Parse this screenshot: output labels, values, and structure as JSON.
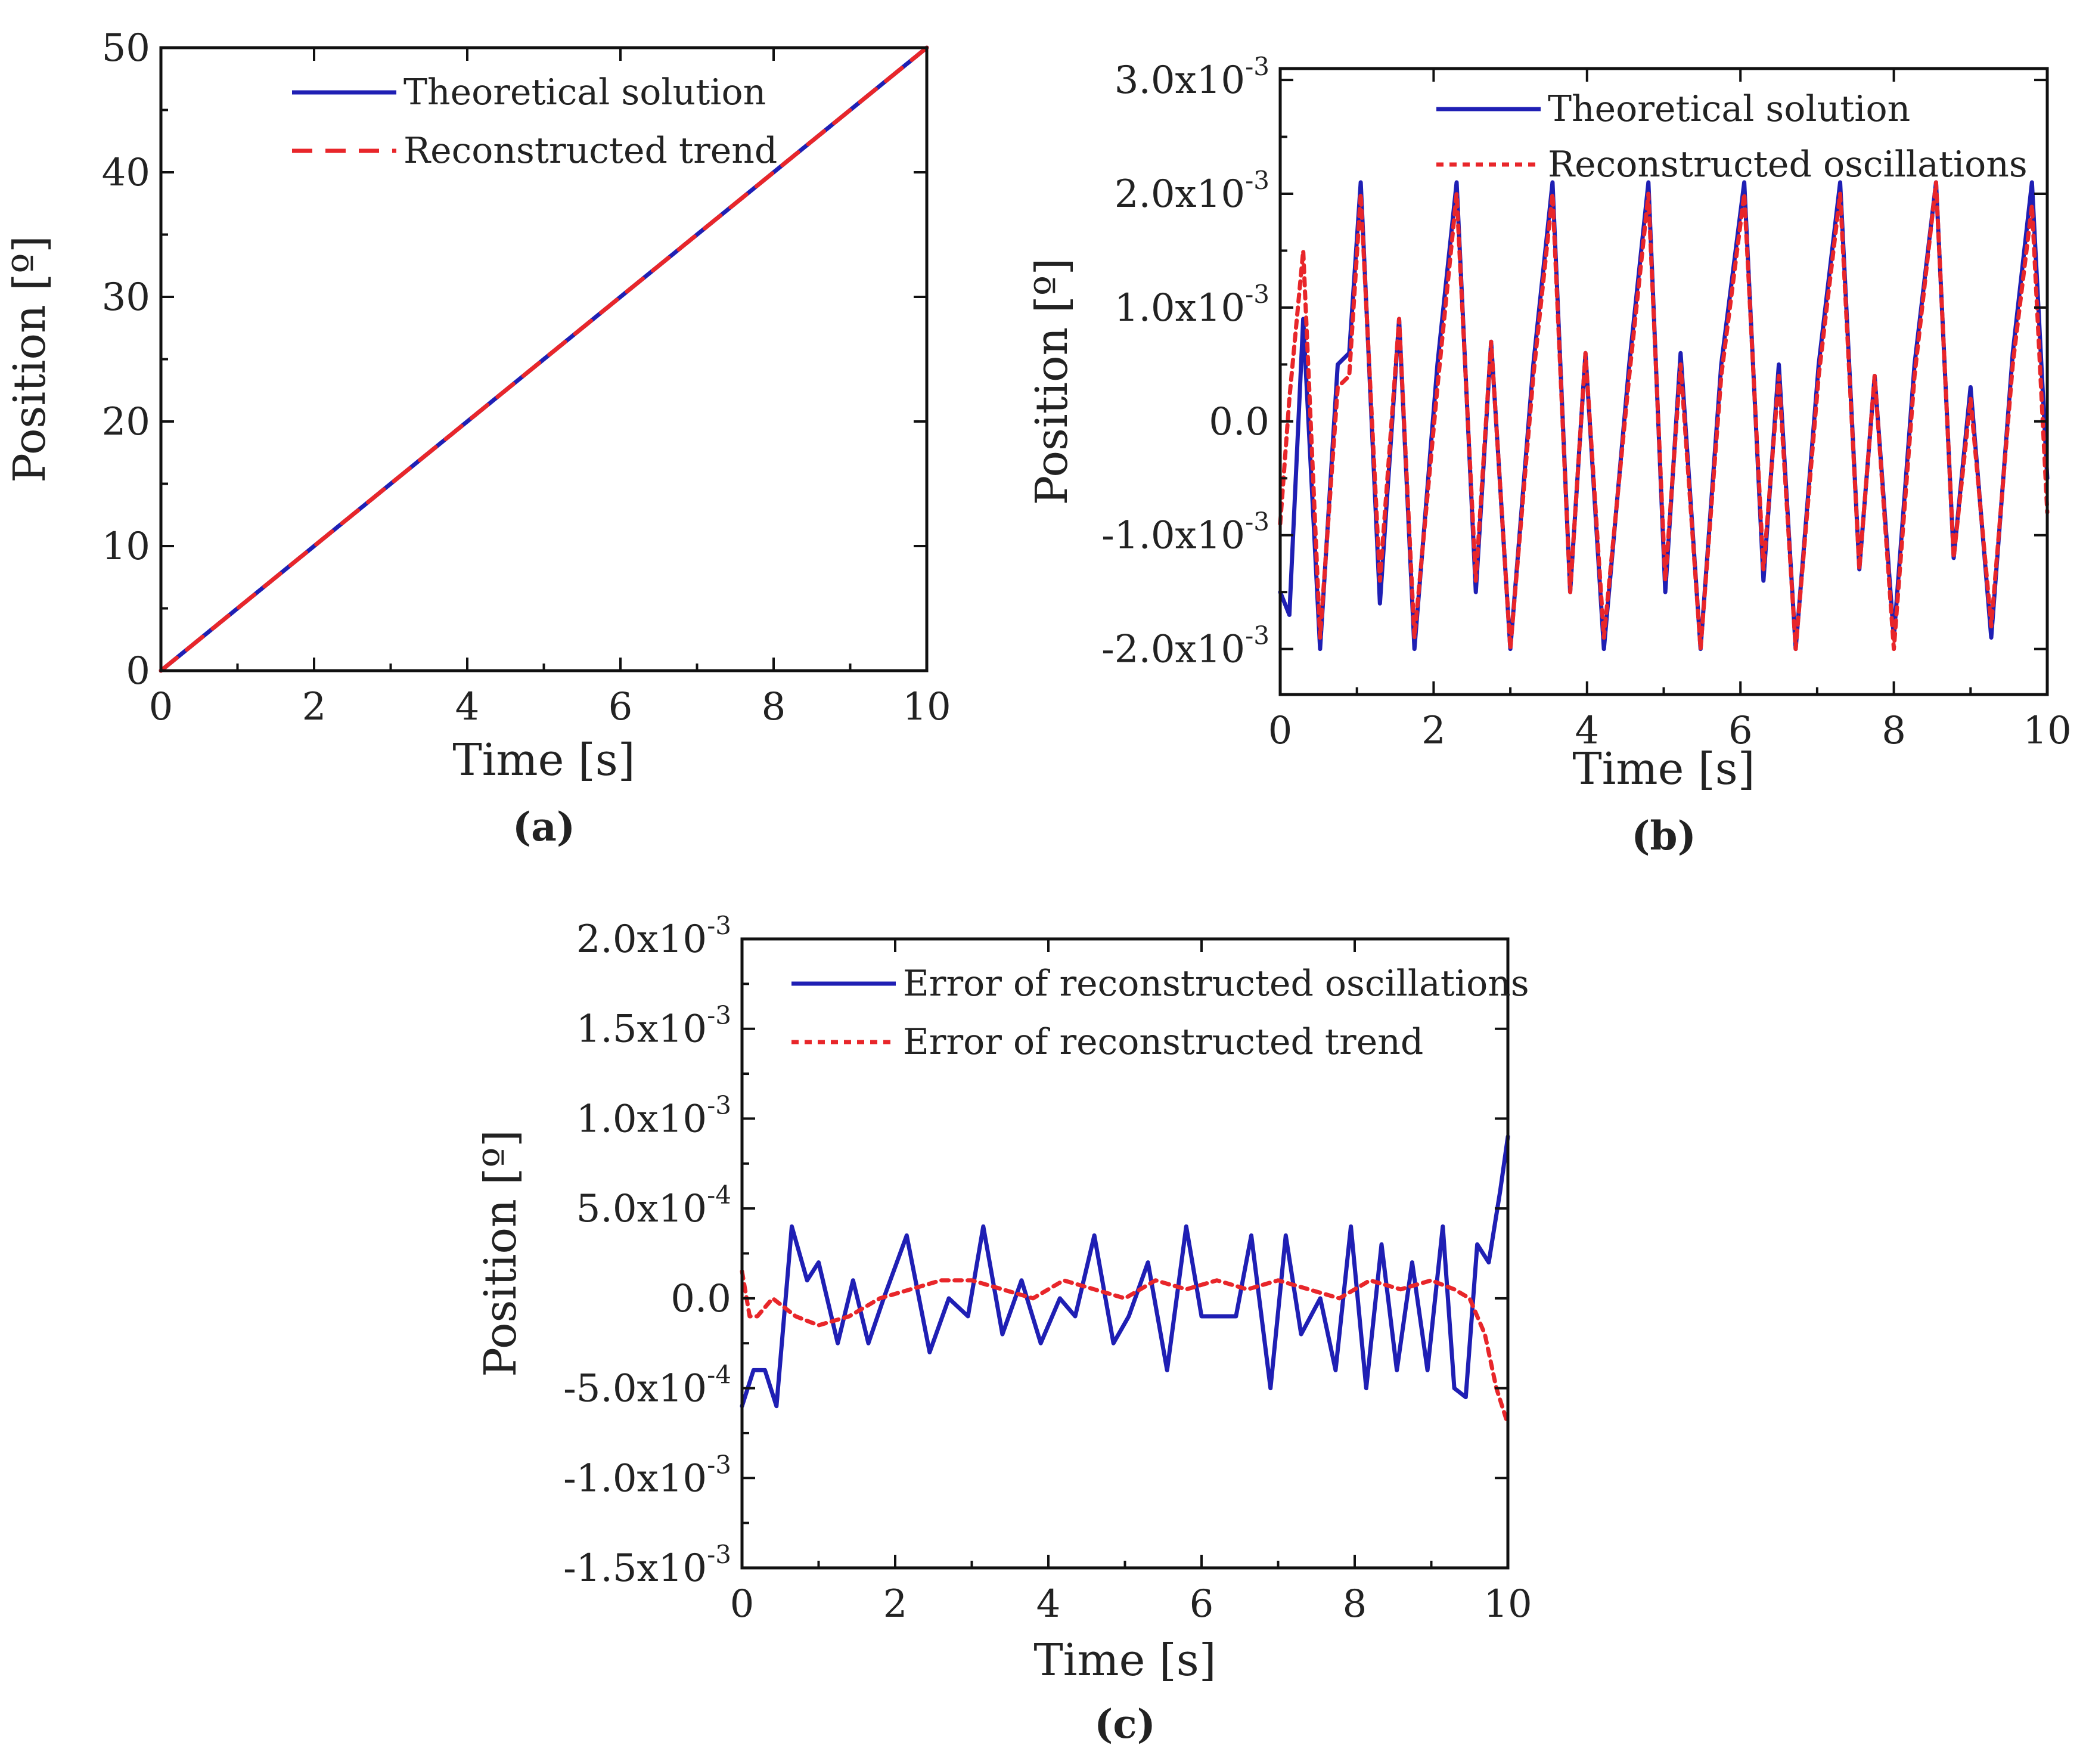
{
  "chart_data": [
    {
      "id": "a",
      "type": "line",
      "caption": "(a)",
      "xlabel": "Time [s]",
      "ylabel": "Position [º]",
      "xlim": [
        0,
        10
      ],
      "ylim": [
        0,
        50
      ],
      "xticks": [
        0,
        2,
        4,
        6,
        8,
        10
      ],
      "xtick_labels": [
        "0",
        "2",
        "4",
        "6",
        "8",
        "10"
      ],
      "yticks": [
        0,
        10,
        20,
        30,
        40,
        50
      ],
      "ytick_labels": [
        "0",
        "10",
        "20",
        "30",
        "40",
        "50"
      ],
      "legend_position": "top-center",
      "series": [
        {
          "name": "Theoretical solution",
          "color": "#1f1fb4",
          "dash": "solid",
          "x": [
            0,
            1,
            2,
            3,
            4,
            5,
            6,
            7,
            8,
            9,
            10
          ],
          "y": [
            0,
            5,
            10,
            15,
            20,
            25,
            30,
            35,
            40,
            45,
            50
          ]
        },
        {
          "name": "Reconstructed trend",
          "color": "#e8262a",
          "dash": "dashed",
          "x": [
            0,
            1,
            2,
            3,
            4,
            5,
            6,
            7,
            8,
            9,
            10
          ],
          "y": [
            0,
            5,
            10,
            15,
            20,
            25,
            30,
            35,
            40,
            45,
            50
          ]
        }
      ]
    },
    {
      "id": "b",
      "type": "line",
      "caption": "(b)",
      "xlabel": "Time [s]",
      "ylabel": "Position [º]",
      "xlim": [
        0,
        10
      ],
      "ylim": [
        -0.0024,
        0.0031
      ],
      "xticks": [
        0,
        2,
        4,
        6,
        8,
        10
      ],
      "xtick_labels": [
        "0",
        "2",
        "4",
        "6",
        "8",
        "10"
      ],
      "yticks": [
        -0.002,
        -0.001,
        0,
        0.001,
        0.002,
        0.003
      ],
      "ytick_labels": [
        {
          "base": "-2.0x10",
          "exp": "-3"
        },
        {
          "base": "-1.0x10",
          "exp": "-3"
        },
        {
          "base": "0.0",
          "exp": ""
        },
        {
          "base": "1.0x10",
          "exp": "-3"
        },
        {
          "base": "2.0x10",
          "exp": "-3"
        },
        {
          "base": "3.0x10",
          "exp": "-3"
        }
      ],
      "legend_position": "top-right",
      "series": [
        {
          "name": "Theoretical solution",
          "color": "#1f1fb4",
          "dash": "solid",
          "x": [
            0.0,
            0.12,
            0.3,
            0.52,
            0.75,
            0.9,
            1.05,
            1.3,
            1.55,
            1.75,
            2.05,
            2.3,
            2.55,
            2.75,
            3.0,
            3.3,
            3.55,
            3.78,
            3.98,
            4.22,
            4.55,
            4.8,
            5.02,
            5.22,
            5.48,
            5.75,
            6.05,
            6.3,
            6.5,
            6.72,
            7.02,
            7.3,
            7.55,
            7.75,
            8.0,
            8.27,
            8.55,
            8.78,
            9.0,
            9.27,
            9.55,
            9.8,
            10.0
          ],
          "y": [
            -0.0015,
            -0.0017,
            0.0009,
            -0.002,
            0.0005,
            0.0006,
            0.0021,
            -0.0016,
            0.0009,
            -0.002,
            0.0005,
            0.0021,
            -0.0015,
            0.0007,
            -0.002,
            0.0005,
            0.0021,
            -0.0015,
            0.0006,
            -0.002,
            0.0005,
            0.0021,
            -0.0015,
            0.0006,
            -0.002,
            0.0005,
            0.0021,
            -0.0014,
            0.0005,
            -0.002,
            0.0005,
            0.0021,
            -0.0013,
            0.0004,
            -0.0019,
            0.0005,
            0.0021,
            -0.0012,
            0.0003,
            -0.0019,
            0.0006,
            0.0021,
            -0.0005
          ]
        },
        {
          "name": "Reconstructed  oscillations",
          "color": "#e8262a",
          "dash": "dotted",
          "x": [
            0.0,
            0.12,
            0.3,
            0.52,
            0.75,
            0.9,
            1.05,
            1.3,
            1.55,
            1.75,
            2.05,
            2.3,
            2.55,
            2.75,
            3.0,
            3.3,
            3.55,
            3.78,
            3.98,
            4.22,
            4.55,
            4.8,
            5.02,
            5.22,
            5.48,
            5.75,
            6.05,
            6.3,
            6.5,
            6.72,
            7.02,
            7.3,
            7.55,
            7.75,
            8.0,
            8.27,
            8.55,
            8.78,
            9.0,
            9.27,
            9.55,
            9.8,
            10.0
          ],
          "y": [
            -0.0009,
            0.0002,
            0.0015,
            -0.0019,
            0.0003,
            0.0004,
            0.002,
            -0.0014,
            0.0009,
            -0.0019,
            0.0003,
            0.002,
            -0.0014,
            0.0007,
            -0.002,
            0.0004,
            0.002,
            -0.0015,
            0.0006,
            -0.0019,
            0.0004,
            0.002,
            -0.0014,
            0.0005,
            -0.002,
            0.0004,
            0.002,
            -0.0013,
            0.0004,
            -0.002,
            0.0004,
            0.002,
            -0.0013,
            0.0004,
            -0.002,
            0.0004,
            0.0021,
            -0.0012,
            0.0002,
            -0.0018,
            0.0005,
            0.0019,
            -0.0008
          ]
        }
      ]
    },
    {
      "id": "c",
      "type": "line",
      "caption": "(c)",
      "xlabel": "Time [s]",
      "ylabel": "Position [º]",
      "xlim": [
        0,
        10
      ],
      "ylim": [
        -0.0015,
        0.002
      ],
      "xticks": [
        0,
        2,
        4,
        6,
        8,
        10
      ],
      "xtick_labels": [
        "0",
        "2",
        "4",
        "6",
        "8",
        "10"
      ],
      "yticks": [
        -0.0015,
        -0.001,
        -0.0005,
        0,
        0.0005,
        0.001,
        0.0015,
        0.002
      ],
      "ytick_labels": [
        {
          "base": "-1.5x10",
          "exp": "-3"
        },
        {
          "base": "-1.0x10",
          "exp": "-3"
        },
        {
          "base": "-5.0x10",
          "exp": "-4"
        },
        {
          "base": "0.0",
          "exp": ""
        },
        {
          "base": "5.0x10",
          "exp": "-4"
        },
        {
          "base": "1.0x10",
          "exp": "-3"
        },
        {
          "base": "1.5x10",
          "exp": "-3"
        },
        {
          "base": "2.0x10",
          "exp": "-3"
        }
      ],
      "legend_position": "top-right",
      "series": [
        {
          "name": "Error of reconstructed oscillations",
          "color": "#1f1fb4",
          "dash": "solid",
          "x": [
            0.0,
            0.15,
            0.3,
            0.45,
            0.65,
            0.85,
            1.0,
            1.25,
            1.45,
            1.65,
            1.85,
            2.15,
            2.45,
            2.7,
            2.95,
            3.15,
            3.4,
            3.65,
            3.9,
            4.15,
            4.35,
            4.6,
            4.85,
            5.05,
            5.3,
            5.55,
            5.8,
            6.0,
            6.2,
            6.45,
            6.65,
            6.9,
            7.1,
            7.3,
            7.55,
            7.75,
            7.95,
            8.15,
            8.35,
            8.55,
            8.75,
            8.95,
            9.15,
            9.3,
            9.45,
            9.6,
            9.75,
            9.9,
            10.0
          ],
          "y": [
            -0.0006,
            -0.0004,
            -0.0004,
            -0.0006,
            0.0004,
            0.0001,
            0.0002,
            -0.00025,
            0.0001,
            -0.00025,
            0.0,
            0.00035,
            -0.0003,
            0.0,
            -0.0001,
            0.0004,
            -0.0002,
            0.0001,
            -0.00025,
            0.0,
            -0.0001,
            0.00035,
            -0.00025,
            -0.0001,
            0.0002,
            -0.0004,
            0.0004,
            -0.0001,
            -0.0001,
            -0.0001,
            0.00035,
            -0.0005,
            0.00035,
            -0.0002,
            0.0,
            -0.0004,
            0.0004,
            -0.0005,
            0.0003,
            -0.0004,
            0.0002,
            -0.0004,
            0.0004,
            -0.0005,
            -0.00055,
            0.0003,
            0.0002,
            0.0006,
            0.0009
          ]
        },
        {
          "name": "Error of reconstructed trend",
          "color": "#e8262a",
          "dash": "dotted",
          "x": [
            0.0,
            0.1,
            0.2,
            0.4,
            0.7,
            1.0,
            1.4,
            1.8,
            2.2,
            2.6,
            3.0,
            3.4,
            3.8,
            4.2,
            4.6,
            5.0,
            5.4,
            5.8,
            6.2,
            6.6,
            7.0,
            7.4,
            7.8,
            8.2,
            8.6,
            9.0,
            9.3,
            9.5,
            9.7,
            9.85,
            10.0
          ],
          "y": [
            0.00015,
            -0.0001,
            -0.0001,
            0.0,
            -0.0001,
            -0.00015,
            -0.0001,
            0.0,
            5e-05,
            0.0001,
            0.0001,
            5e-05,
            0.0,
            0.0001,
            5e-05,
            0.0,
            0.0001,
            5e-05,
            0.0001,
            5e-05,
            0.0001,
            5e-05,
            0.0,
            0.0001,
            5e-05,
            0.0001,
            5e-05,
            0.0,
            -0.0002,
            -0.0005,
            -0.0007
          ]
        }
      ]
    }
  ]
}
